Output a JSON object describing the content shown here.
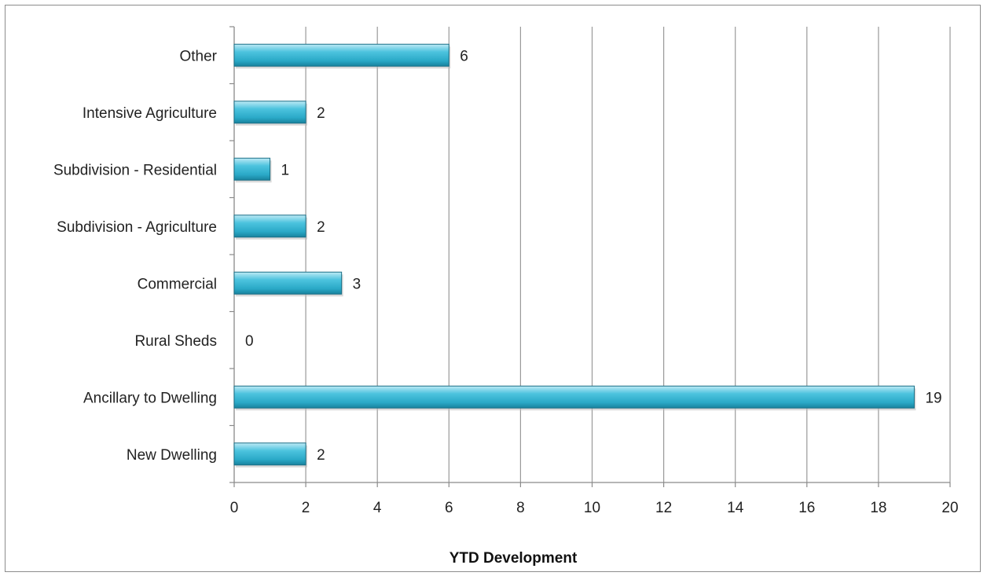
{
  "chart_data": {
    "type": "bar",
    "orientation": "horizontal",
    "title": "",
    "xlabel": "YTD Development",
    "ylabel": "",
    "categories": [
      "New Dwelling",
      "Ancillary to Dwelling",
      "Rural Sheds",
      "Commercial",
      "Subdivision - Agriculture",
      "Subdivision - Residential",
      "Intensive Agriculture",
      "Other"
    ],
    "values": [
      2,
      19,
      0,
      3,
      2,
      1,
      2,
      6
    ],
    "xlim": [
      0,
      20
    ],
    "xticks": [
      0,
      2,
      4,
      6,
      8,
      10,
      12,
      14,
      16,
      18,
      20
    ],
    "grid": "vertical",
    "legend": "none",
    "bar_color": "#31b6d4",
    "bar_edge_color": "#1a6f86"
  }
}
